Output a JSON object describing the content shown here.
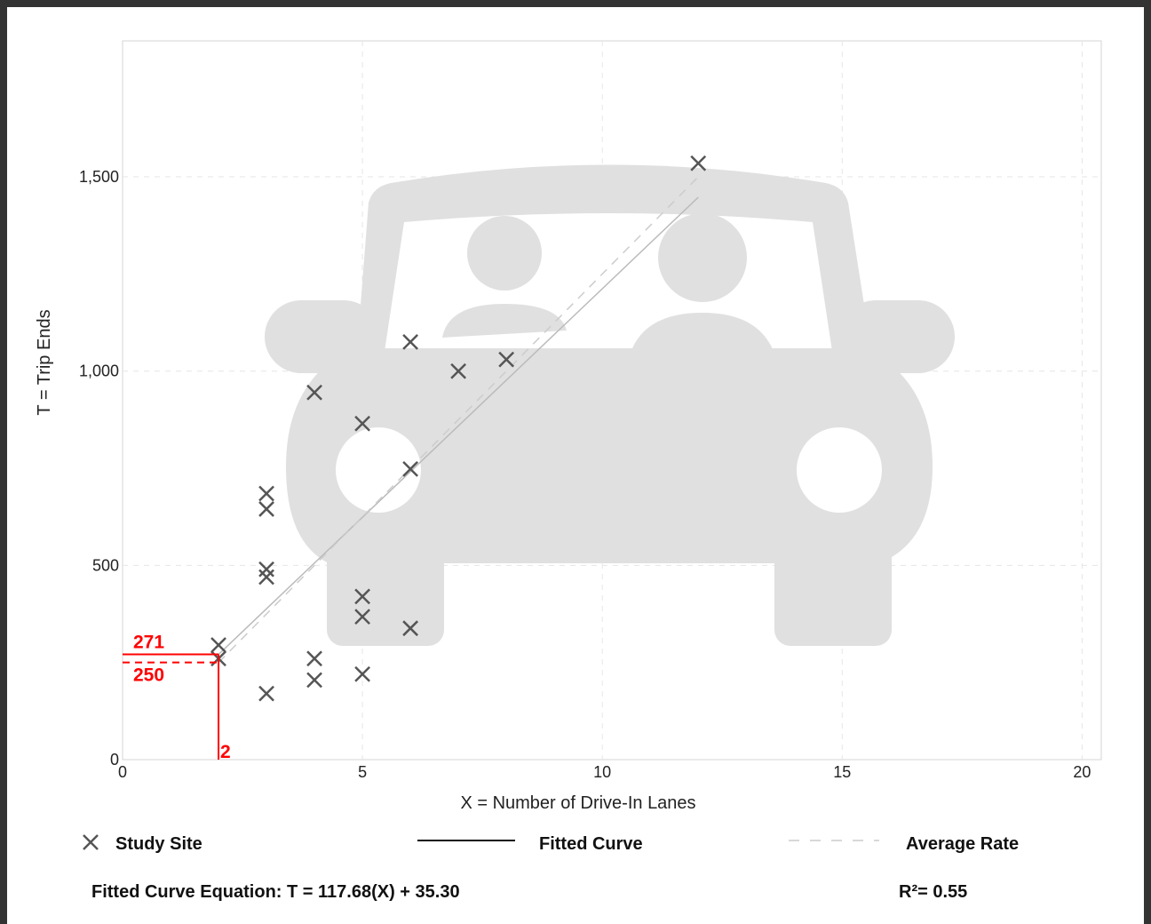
{
  "chart_data": {
    "type": "scatter",
    "title": "",
    "xlabel": "X = Number of Drive-In Lanes",
    "ylabel": "T = Trip Ends",
    "xlim": [
      0,
      20.4
    ],
    "ylim": [
      0,
      1850
    ],
    "xticks": [
      0,
      5,
      10,
      15,
      20
    ],
    "yticks": [
      0,
      500,
      1000,
      1500
    ],
    "xtick_labels": [
      "0",
      "5",
      "10",
      "15",
      "20"
    ],
    "ytick_labels": [
      "0",
      "500",
      "1,000",
      "1,500"
    ],
    "grid": true,
    "series": [
      {
        "name": "Study Site",
        "points": [
          {
            "x": 2,
            "y": 295
          },
          {
            "x": 2,
            "y": 260
          },
          {
            "x": 3,
            "y": 685
          },
          {
            "x": 3,
            "y": 645
          },
          {
            "x": 3,
            "y": 490
          },
          {
            "x": 3,
            "y": 470
          },
          {
            "x": 3,
            "y": 170
          },
          {
            "x": 4,
            "y": 945
          },
          {
            "x": 4,
            "y": 260
          },
          {
            "x": 4,
            "y": 205
          },
          {
            "x": 5,
            "y": 865
          },
          {
            "x": 5,
            "y": 420
          },
          {
            "x": 5,
            "y": 368
          },
          {
            "x": 5,
            "y": 220
          },
          {
            "x": 6,
            "y": 1075
          },
          {
            "x": 6,
            "y": 748
          },
          {
            "x": 6,
            "y": 338
          },
          {
            "x": 7,
            "y": 1000
          },
          {
            "x": 8,
            "y": 1030
          },
          {
            "x": 12,
            "y": 1535
          }
        ]
      }
    ],
    "fitted_curve": {
      "name": "Fitted Curve",
      "slope": 117.68,
      "intercept": 35.3,
      "x_range": [
        2,
        12
      ]
    },
    "average_rate": {
      "name": "Average Rate",
      "rate": 125,
      "x_range": [
        2,
        12
      ]
    },
    "annotation": {
      "x": 2,
      "fitted_value": 271,
      "average_value": 250,
      "x_label": "2",
      "fitted_label": "271",
      "average_label": "250"
    },
    "colors": {
      "marker": "#555555",
      "fitted": "#bbbbbb",
      "average": "#cccccc",
      "annotation": "#ff0000",
      "grid": "#e6e6e6",
      "watermark": "#e0e0e0"
    }
  },
  "legend": {
    "study_site": "Study Site",
    "fitted_curve": "Fitted Curve",
    "average_rate": "Average Rate"
  },
  "equation_text": "Fitted Curve Equation: T = 117.68(X) + 35.30",
  "r_squared_text": "R²= 0.55",
  "watermark_icon": "car-with-passengers-icon"
}
